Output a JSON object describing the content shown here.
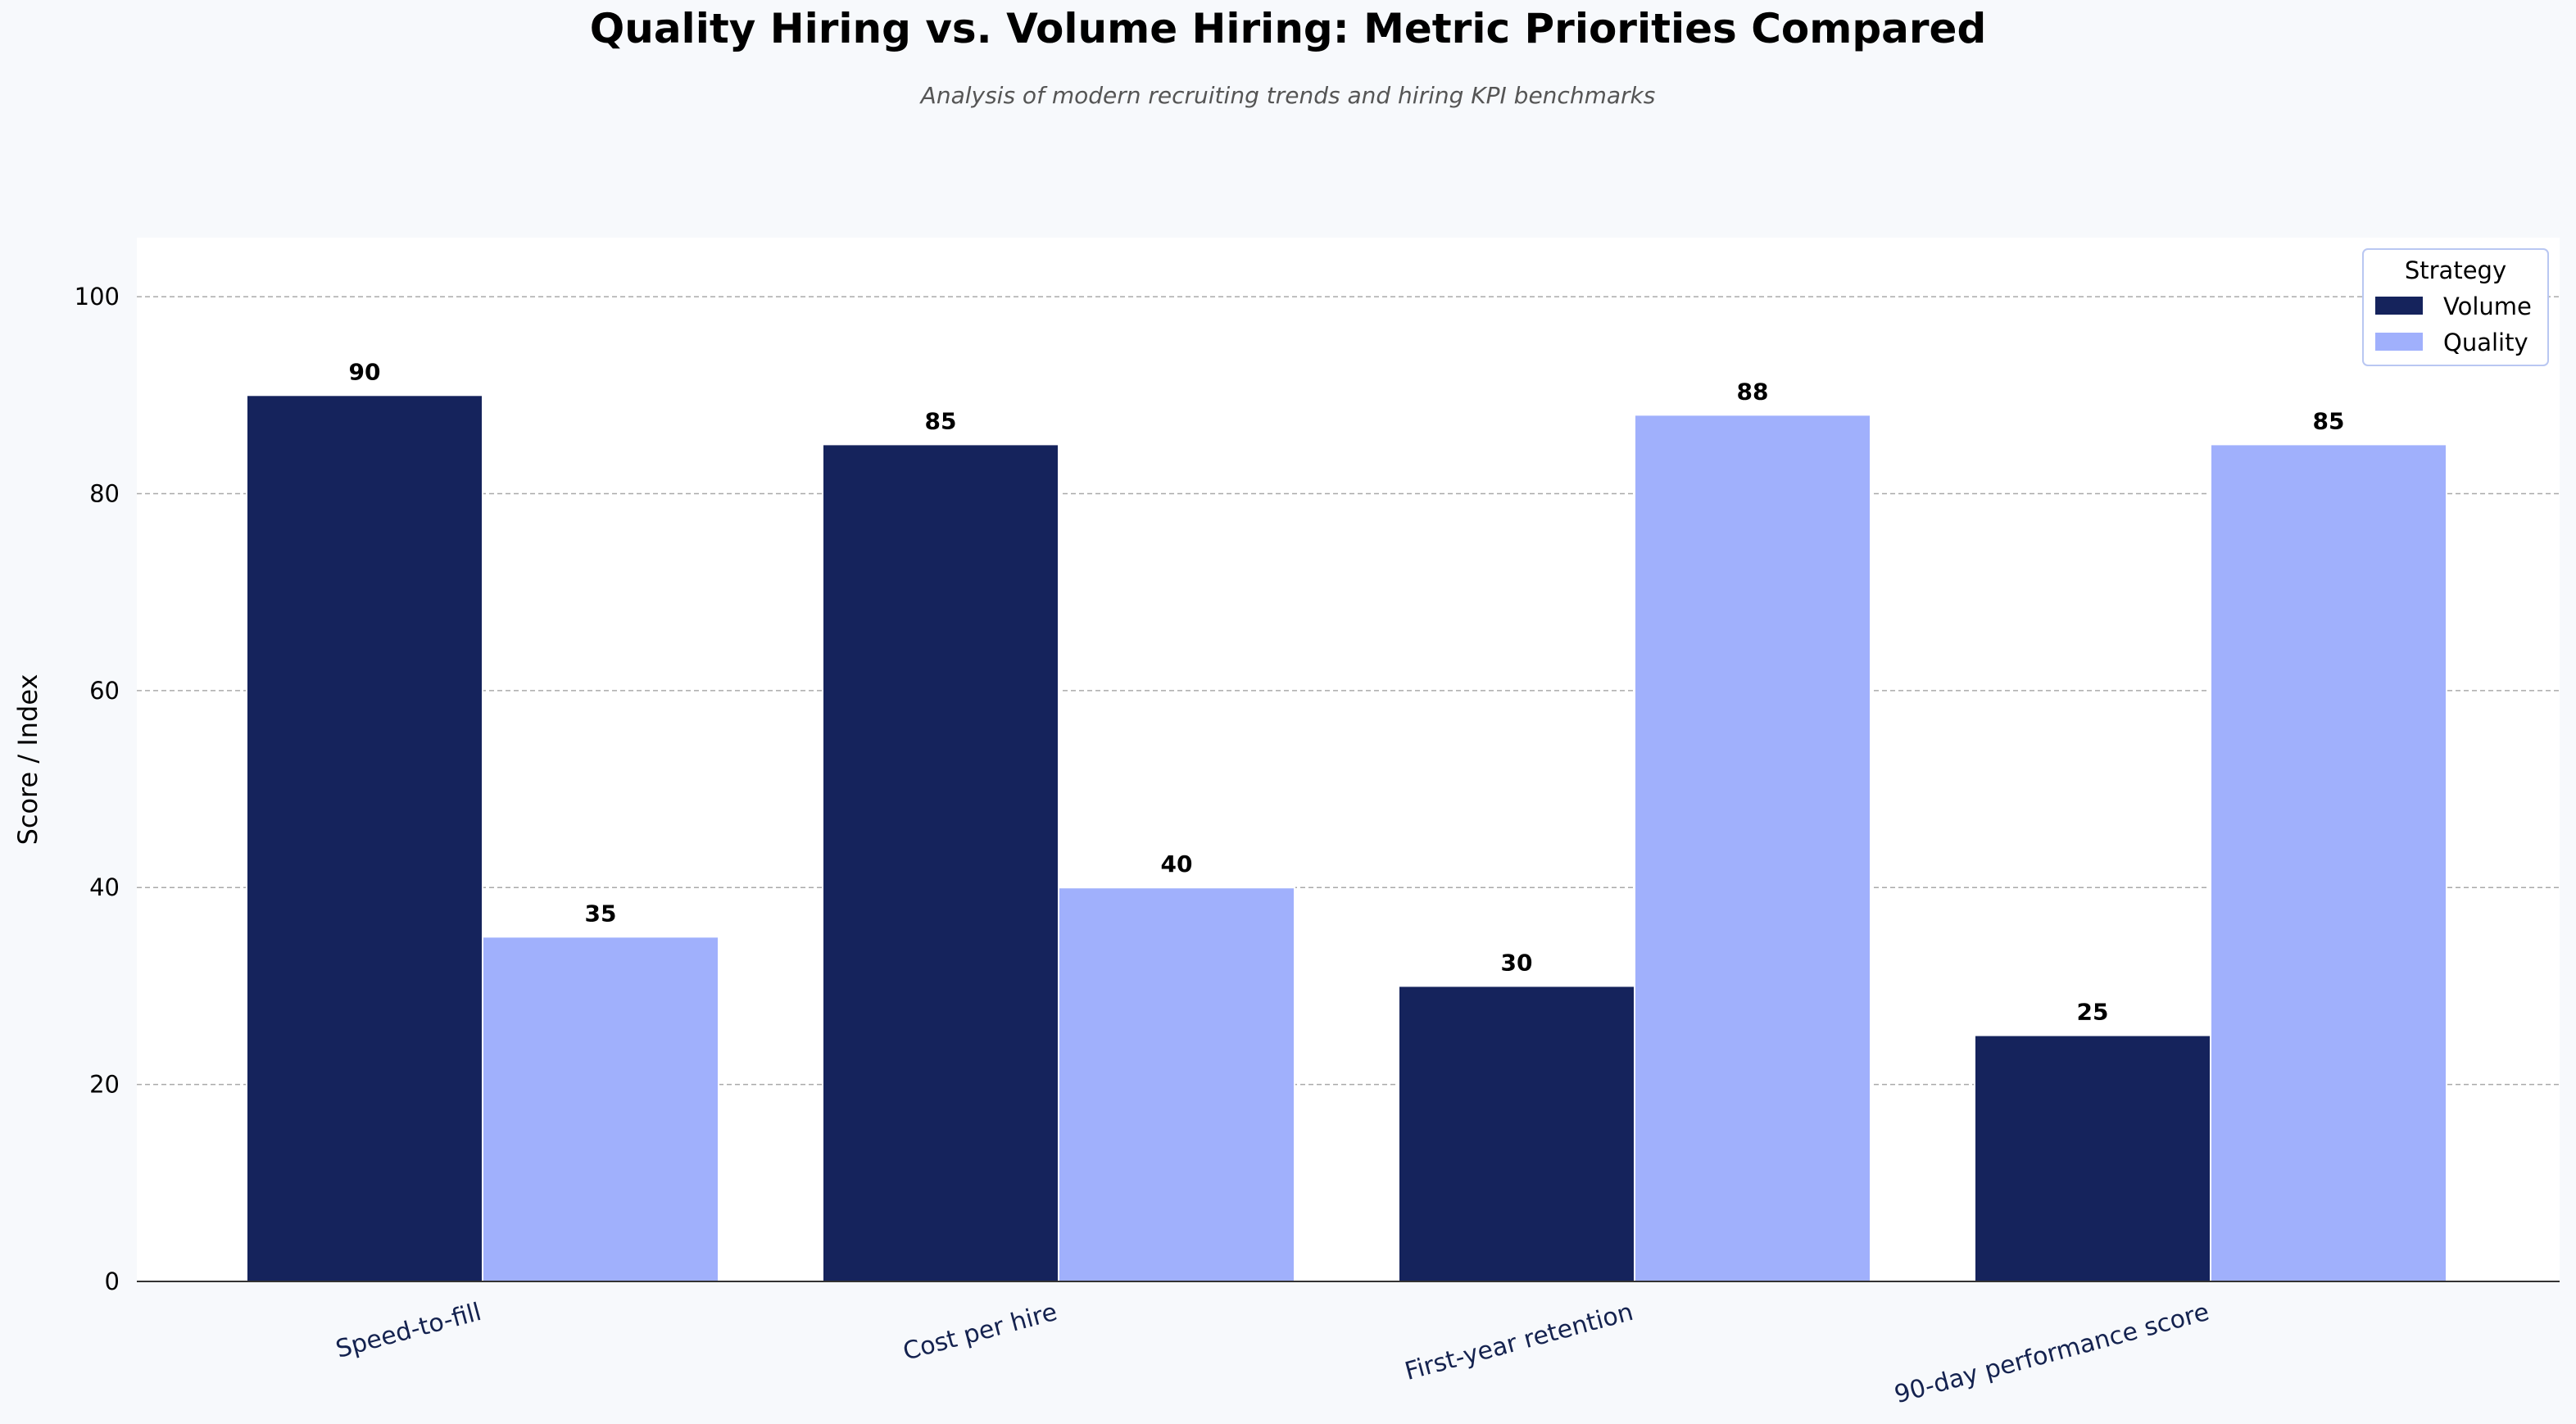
{
  "chart_data": {
    "type": "bar",
    "title": "Quality Hiring vs. Volume Hiring: Metric Priorities Compared",
    "subtitle": "Analysis of modern recruiting trends and hiring KPI benchmarks",
    "xlabel": "",
    "ylabel": "Score / Index",
    "categories": [
      "Speed-to-fill",
      "Cost per hire",
      "First-year retention",
      "90-day performance score"
    ],
    "series": [
      {
        "name": "Volume",
        "values": [
          90,
          85,
          30,
          25
        ],
        "color": "#15235c"
      },
      {
        "name": "Quality",
        "values": [
          35,
          40,
          88,
          85
        ],
        "color": "#a0b0fc"
      }
    ],
    "ylim": [
      0,
      106
    ],
    "yticks": [
      0,
      20,
      40,
      60,
      80,
      100
    ],
    "grid": true,
    "legend": {
      "title": "Strategy",
      "position": "top-right"
    }
  }
}
